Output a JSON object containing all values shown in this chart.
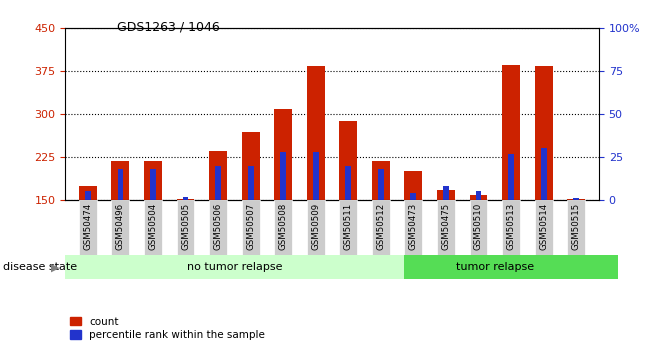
{
  "title": "GDS1263 / 1046",
  "samples": [
    "GSM50474",
    "GSM50496",
    "GSM50504",
    "GSM50505",
    "GSM50506",
    "GSM50507",
    "GSM50508",
    "GSM50509",
    "GSM50511",
    "GSM50512",
    "GSM50473",
    "GSM50475",
    "GSM50510",
    "GSM50513",
    "GSM50514",
    "GSM50515"
  ],
  "count_values": [
    175,
    218,
    218,
    152,
    235,
    268,
    308,
    383,
    288,
    218,
    200,
    168,
    158,
    385,
    383,
    152
  ],
  "percentile_values": [
    5,
    18,
    18,
    2,
    20,
    20,
    28,
    28,
    20,
    18,
    4,
    8,
    5,
    27,
    30,
    1
  ],
  "no_tumor_count": 10,
  "tumor_count": 6,
  "disease_groups": [
    "no tumor relapse",
    "tumor relapse"
  ],
  "bar_color_red": "#cc2200",
  "bar_color_blue": "#2233cc",
  "no_tumor_color": "#ccffcc",
  "tumor_color": "#55dd55",
  "tick_label_color_left": "#cc2200",
  "tick_label_color_right": "#2233cc",
  "ymin": 150,
  "ymax": 450,
  "yticks": [
    150,
    225,
    300,
    375,
    450
  ],
  "y2min": 0,
  "y2max": 100,
  "y2ticks": [
    0,
    25,
    50,
    75,
    100
  ],
  "bar_width": 0.55,
  "blue_bar_width": 0.18,
  "background_color": "#ffffff",
  "xticklabel_bg": "#cccccc"
}
